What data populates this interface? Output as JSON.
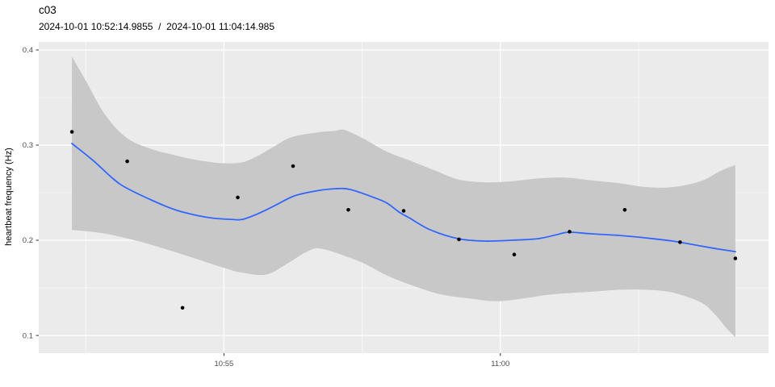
{
  "chart_data": {
    "type": "scatter",
    "title": "c03",
    "subtitle": "2024-10-01 10:52:14.9855  /  2024-10-01 11:04:14.985",
    "xlabel": "",
    "ylabel": "heartbeat frequency (Hz)",
    "legend": "none",
    "grid": "on",
    "x_unit": "time of day (seconds since midnight)",
    "x_domain_sec": [
      39099,
      39891
    ],
    "y_domain": [
      0.0814,
      0.4085
    ],
    "x_ticks": [
      {
        "label": "10:55",
        "sec": 39300
      },
      {
        "label": "11:00",
        "sec": 39600
      }
    ],
    "x_minor_sec": [
      39150,
      39450,
      39750
    ],
    "y_ticks": [
      {
        "label": "0.1",
        "v": 0.1
      },
      {
        "label": "0.2",
        "v": 0.2
      },
      {
        "label": "0.3",
        "v": 0.3
      },
      {
        "label": "0.4",
        "v": 0.4
      }
    ],
    "y_minor": [
      0.15,
      0.25,
      0.35
    ],
    "points": [
      {
        "time": "10:52:15",
        "sec": 39135,
        "hz": 0.314
      },
      {
        "time": "10:53:15",
        "sec": 39195,
        "hz": 0.283
      },
      {
        "time": "10:54:15",
        "sec": 39255,
        "hz": 0.129
      },
      {
        "time": "10:55:15",
        "sec": 39315,
        "hz": 0.245
      },
      {
        "time": "10:56:15",
        "sec": 39375,
        "hz": 0.278
      },
      {
        "time": "10:57:15",
        "sec": 39435,
        "hz": 0.232
      },
      {
        "time": "10:58:15",
        "sec": 39495,
        "hz": 0.231
      },
      {
        "time": "10:59:15",
        "sec": 39555,
        "hz": 0.201
      },
      {
        "time": "11:00:15",
        "sec": 39615,
        "hz": 0.185
      },
      {
        "time": "11:01:15",
        "sec": 39675,
        "hz": 0.209
      },
      {
        "time": "11:02:15",
        "sec": 39735,
        "hz": 0.232
      },
      {
        "time": "11:03:15",
        "sec": 39795,
        "hz": 0.198
      },
      {
        "time": "11:04:15",
        "sec": 39855,
        "hz": 0.181
      }
    ],
    "smooth_line": [
      [
        39135,
        0.3017
      ],
      [
        39157,
        0.2847
      ],
      [
        39180,
        0.2644
      ],
      [
        39194,
        0.2551
      ],
      [
        39221,
        0.2424
      ],
      [
        39244,
        0.2331
      ],
      [
        39262,
        0.228
      ],
      [
        39285,
        0.2237
      ],
      [
        39308,
        0.222
      ],
      [
        39320,
        0.222
      ],
      [
        39337,
        0.228
      ],
      [
        39355,
        0.2364
      ],
      [
        39376,
        0.2466
      ],
      [
        39399,
        0.2517
      ],
      [
        39420,
        0.2542
      ],
      [
        39437,
        0.2534
      ],
      [
        39463,
        0.2449
      ],
      [
        39477,
        0.239
      ],
      [
        39490,
        0.2297
      ],
      [
        39501,
        0.2237
      ],
      [
        39524,
        0.211
      ],
      [
        39554,
        0.2017
      ],
      [
        39583,
        0.1992
      ],
      [
        39612,
        0.2
      ],
      [
        39641,
        0.2017
      ],
      [
        39661,
        0.2059
      ],
      [
        39674,
        0.2085
      ],
      [
        39699,
        0.2068
      ],
      [
        39729,
        0.2051
      ],
      [
        39758,
        0.2025
      ],
      [
        39787,
        0.1992
      ],
      [
        39817,
        0.1941
      ],
      [
        39837,
        0.1907
      ],
      [
        39855,
        0.1881
      ]
    ],
    "confidence_band": {
      "upper": [
        [
          39135,
          0.393
        ],
        [
          39151,
          0.366
        ],
        [
          39171,
          0.332
        ],
        [
          39194,
          0.308
        ],
        [
          39221,
          0.296
        ],
        [
          39244,
          0.29
        ],
        [
          39262,
          0.286
        ],
        [
          39280,
          0.283
        ],
        [
          39300,
          0.281
        ],
        [
          39320,
          0.282
        ],
        [
          39337,
          0.289
        ],
        [
          39350,
          0.296
        ],
        [
          39372,
          0.308
        ],
        [
          39399,
          0.313
        ],
        [
          39420,
          0.315
        ],
        [
          39431,
          0.316
        ],
        [
          39451,
          0.307
        ],
        [
          39477,
          0.293
        ],
        [
          39504,
          0.283
        ],
        [
          39530,
          0.273
        ],
        [
          39554,
          0.264
        ],
        [
          39583,
          0.261
        ],
        [
          39612,
          0.262
        ],
        [
          39641,
          0.265
        ],
        [
          39670,
          0.266
        ],
        [
          39699,
          0.263
        ],
        [
          39729,
          0.26
        ],
        [
          39758,
          0.256
        ],
        [
          39787,
          0.256
        ],
        [
          39817,
          0.262
        ],
        [
          39839,
          0.273
        ],
        [
          39855,
          0.279
        ]
      ],
      "lower": [
        [
          39135,
          0.211
        ],
        [
          39171,
          0.207
        ],
        [
          39215,
          0.197
        ],
        [
          39262,
          0.183
        ],
        [
          39300,
          0.171
        ],
        [
          39320,
          0.166
        ],
        [
          39346,
          0.164
        ],
        [
          39368,
          0.175
        ],
        [
          39390,
          0.188
        ],
        [
          39407,
          0.191
        ],
        [
          39449,
          0.177
        ],
        [
          39477,
          0.163
        ],
        [
          39506,
          0.152
        ],
        [
          39536,
          0.143
        ],
        [
          39565,
          0.139
        ],
        [
          39597,
          0.136
        ],
        [
          39626,
          0.139
        ],
        [
          39655,
          0.143
        ],
        [
          39699,
          0.146
        ],
        [
          39729,
          0.148
        ],
        [
          39758,
          0.148
        ],
        [
          39787,
          0.145
        ],
        [
          39817,
          0.135
        ],
        [
          39831,
          0.124
        ],
        [
          39846,
          0.107
        ],
        [
          39855,
          0.098
        ]
      ]
    },
    "colors": {
      "panel": "#EBEBEB",
      "grid": "#FFFFFF",
      "band": "#C8C8C8",
      "line": "#3366FF",
      "point": "#000000",
      "tick_text": "#4D4D4D",
      "tick_mark": "#333333",
      "text": "#000000"
    }
  }
}
